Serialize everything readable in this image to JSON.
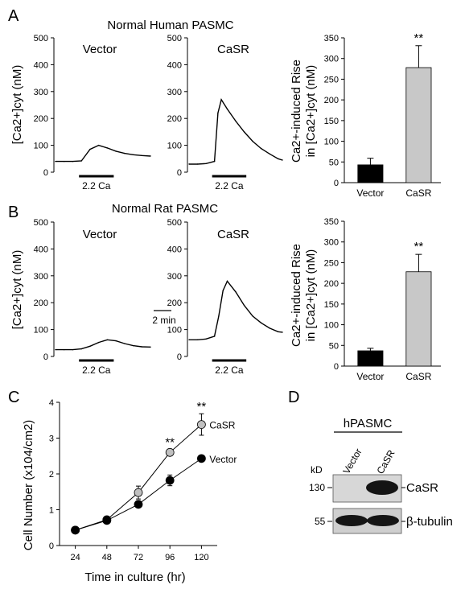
{
  "figure": {
    "panel_letters": [
      "A",
      "B",
      "C",
      "D"
    ],
    "stim_label": "2.2 Ca",
    "scale_bar_label": "2 min"
  },
  "panelA": {
    "title": "Normal Human PASMC",
    "trace_labels": [
      "Vector",
      "CaSR"
    ],
    "trace_ylabel": "[Ca2+]cyt (nM)",
    "bar_ylabel_line1": "Ca2+-induced Rise",
    "bar_ylabel_line2": "in [Ca2+]cyt (nM)"
  },
  "panelB": {
    "title": "Normal Rat PASMC",
    "trace_labels": [
      "Vector",
      "CaSR"
    ],
    "trace_ylabel": "[Ca2+]cyt (nM)",
    "bar_ylabel_line1": "Ca2+-induced Rise",
    "bar_ylabel_line2": "in [Ca2+]cyt (nM)"
  },
  "panelC": {
    "ylabel": "Cell Number (x104/cm2)",
    "xlabel": "Time in culture (hr)"
  },
  "panelD": {
    "header": "hPASMC",
    "lane_labels": [
      "Vector",
      "CaSR"
    ],
    "unit": "kD",
    "markers": [
      "130",
      "55"
    ],
    "band_labels": [
      "CaSR",
      "β-tubulin"
    ]
  },
  "chart_data": [
    {
      "id": "A_trace_vector",
      "type": "line",
      "x": [
        0,
        1,
        2,
        3,
        4,
        5,
        6,
        7,
        8,
        9,
        10,
        11
      ],
      "y": [
        40,
        40,
        40,
        42,
        85,
        100,
        90,
        78,
        70,
        65,
        62,
        60
      ],
      "ylim": [
        0,
        500
      ],
      "yticks": [
        0,
        100,
        200,
        300,
        400,
        500
      ]
    },
    {
      "id": "A_trace_casr",
      "type": "line",
      "x": [
        0,
        1,
        2,
        3,
        3.4,
        3.8,
        4.5,
        5.5,
        6.5,
        7.5,
        8.5,
        9.5,
        10.5,
        11
      ],
      "y": [
        30,
        30,
        32,
        40,
        220,
        270,
        235,
        190,
        150,
        115,
        88,
        68,
        50,
        45
      ],
      "ylim": [
        0,
        500
      ],
      "yticks": [
        0,
        100,
        200,
        300,
        400,
        500
      ]
    },
    {
      "id": "A_bar",
      "type": "bar",
      "categories": [
        "Vector",
        "CaSR"
      ],
      "values": [
        43,
        278
      ],
      "errors": [
        16,
        53
      ],
      "significance": [
        "",
        "**"
      ],
      "ylim": [
        0,
        350
      ],
      "yticks": [
        0,
        50,
        100,
        150,
        200,
        250,
        300,
        350
      ]
    },
    {
      "id": "B_trace_vector",
      "type": "line",
      "x": [
        0,
        1,
        2,
        3,
        4,
        5,
        6,
        7,
        8,
        9,
        10,
        11
      ],
      "y": [
        25,
        25,
        25,
        28,
        38,
        52,
        62,
        58,
        48,
        40,
        36,
        35
      ],
      "ylim": [
        0,
        500
      ],
      "yticks": [
        0,
        100,
        200,
        300,
        400,
        500
      ]
    },
    {
      "id": "B_trace_casr",
      "type": "line",
      "x": [
        0,
        1,
        2,
        3,
        3.5,
        4,
        4.5,
        5.5,
        6.5,
        7.5,
        8.5,
        9.5,
        10.5,
        11
      ],
      "y": [
        62,
        62,
        65,
        75,
        150,
        245,
        280,
        240,
        190,
        150,
        125,
        105,
        92,
        90
      ],
      "ylim": [
        0,
        500
      ],
      "yticks": [
        0,
        100,
        200,
        300,
        400,
        500
      ]
    },
    {
      "id": "B_bar",
      "type": "bar",
      "categories": [
        "Vector",
        "CaSR"
      ],
      "values": [
        37,
        228
      ],
      "errors": [
        6,
        42
      ],
      "significance": [
        "",
        "**"
      ],
      "ylim": [
        0,
        350
      ],
      "yticks": [
        0,
        50,
        100,
        150,
        200,
        250,
        300,
        350
      ]
    },
    {
      "id": "C_growth",
      "type": "line",
      "x": [
        24,
        48,
        72,
        96,
        120
      ],
      "xticks": [
        24,
        48,
        72,
        96,
        120
      ],
      "xlim": [
        12,
        132
      ],
      "ylim": [
        0,
        4
      ],
      "yticks": [
        0,
        1,
        2,
        3,
        4
      ],
      "series": [
        {
          "name": "CaSR",
          "values": [
            0.43,
            0.72,
            1.48,
            2.6,
            3.38
          ],
          "errors": [
            0,
            0.05,
            0.18,
            0.08,
            0.3
          ],
          "color": "#c0c0c0"
        },
        {
          "name": "Vector",
          "values": [
            0.43,
            0.7,
            1.15,
            1.82,
            2.43
          ],
          "errors": [
            0,
            0.05,
            0.07,
            0.15,
            0.05
          ],
          "color": "#000000"
        }
      ],
      "significance_x": [
        96,
        120
      ],
      "significance": [
        "**",
        "**"
      ]
    }
  ]
}
